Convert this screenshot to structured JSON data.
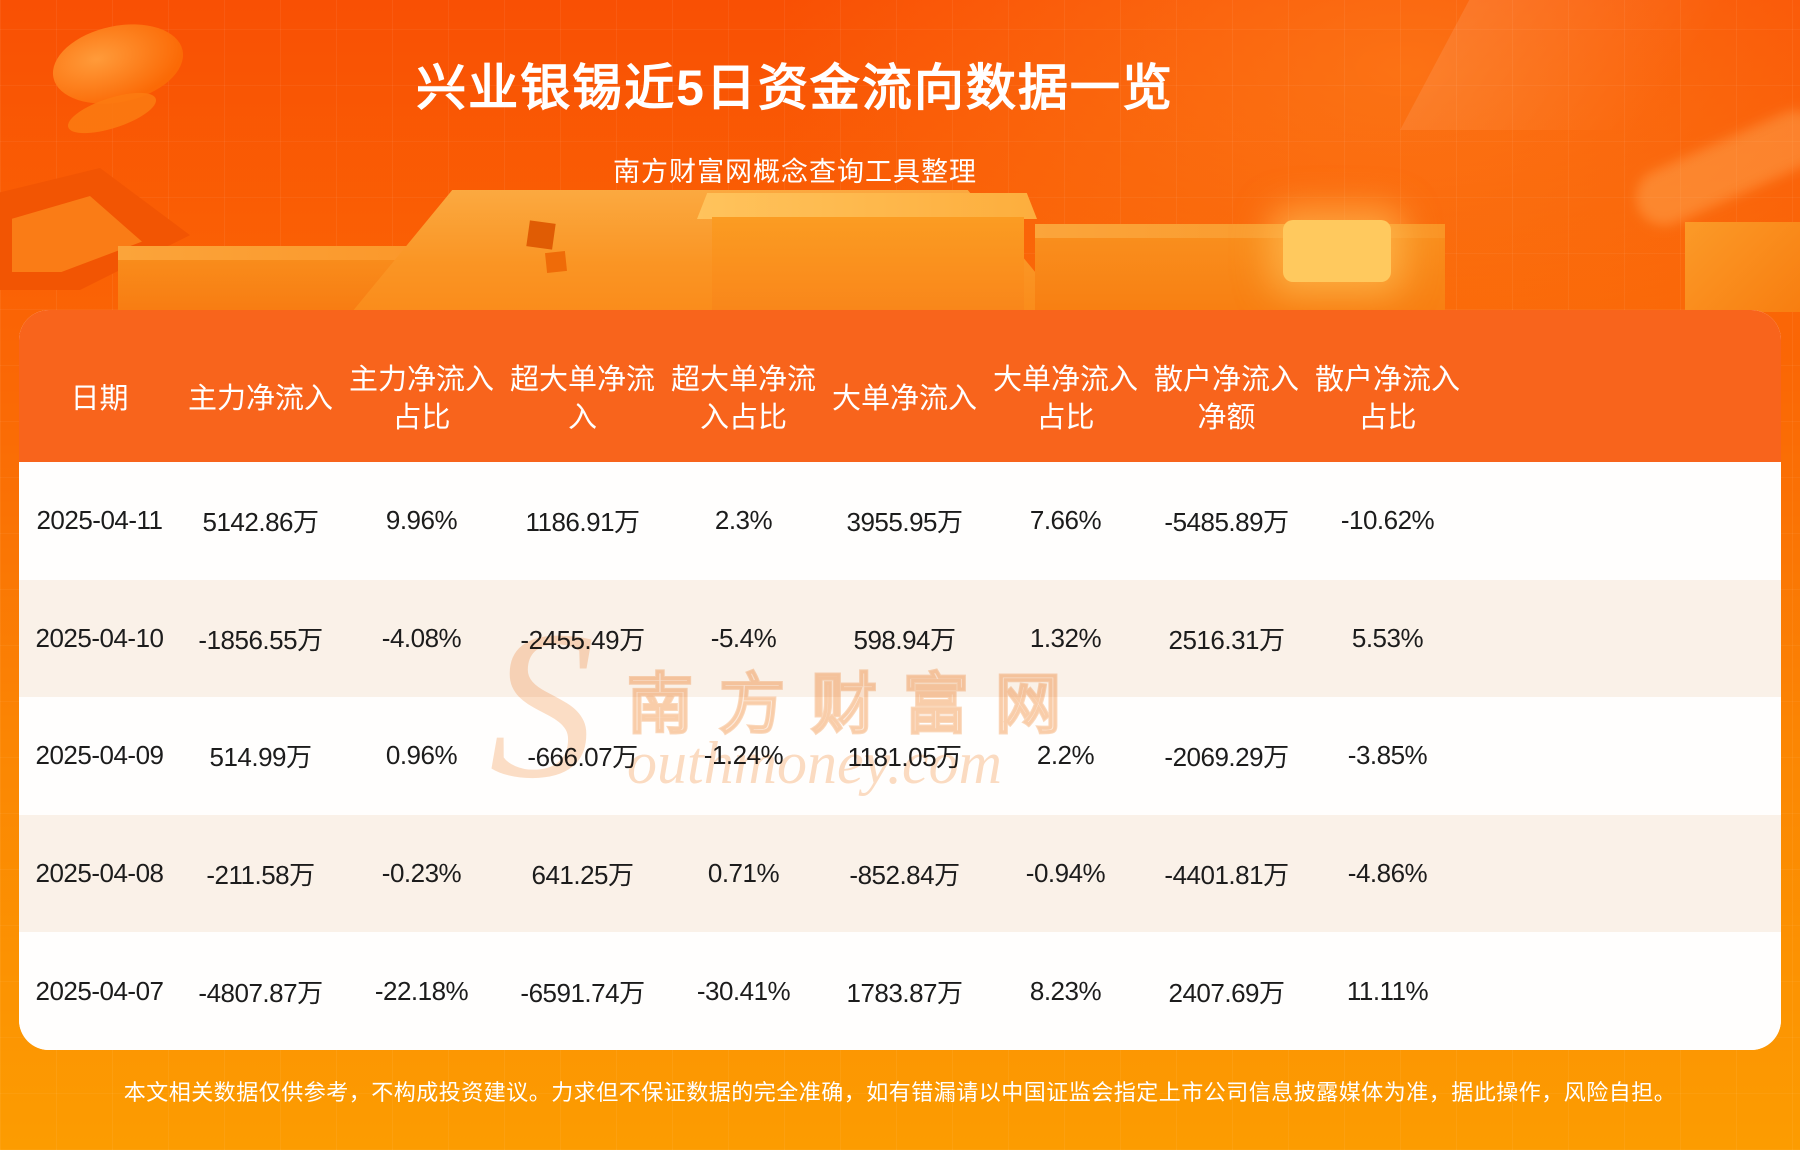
{
  "page": {
    "title": "兴业银锡近5日资金流向数据一览",
    "subtitle": "南方财富网概念查询工具整理",
    "disclaimer": "本文相关数据仅供参考，不构成投资建议。力求但不保证数据的完全准确，如有错漏请以中国证监会指定上市公司信息披露媒体为准，据此操作，风险自担。"
  },
  "watermark": {
    "en_initial": "S",
    "cn": "南方财富网",
    "en_rest": "outhmoney.com"
  },
  "colors": {
    "accent_orange": "#f8641c",
    "row_cream": "#faf1e8",
    "row_white": "#fffefd",
    "background_top": "#f95004",
    "background_bottom": "#fc9c01",
    "text_dark": "#1c1c1c",
    "text_light": "#ffffff"
  },
  "chart_data": {
    "type": "table",
    "title": "兴业银锡近5日资金流向数据一览",
    "columns": [
      "日期",
      "主力净流入",
      "主力净流入\n占比",
      "超大单净流\n入",
      "超大单净流\n入占比",
      "大单净流入",
      "大单净流入\n占比",
      "散户净流入\n净额",
      "散户净流入\n占比"
    ],
    "rows": [
      [
        "2025-04-11",
        "5142.86万",
        "9.96%",
        "1186.91万",
        "2.3%",
        "3955.95万",
        "7.66%",
        "-5485.89万",
        "-10.62%"
      ],
      [
        "2025-04-10",
        "-1856.55万",
        "-4.08%",
        "-2455.49万",
        "-5.4%",
        "598.94万",
        "1.32%",
        "2516.31万",
        "5.53%"
      ],
      [
        "2025-04-09",
        "514.99万",
        "0.96%",
        "-666.07万",
        "-1.24%",
        "1181.05万",
        "2.2%",
        "-2069.29万",
        "-3.85%"
      ],
      [
        "2025-04-08",
        "-211.58万",
        "-0.23%",
        "641.25万",
        "0.71%",
        "-852.84万",
        "-0.94%",
        "-4401.81万",
        "-4.86%"
      ],
      [
        "2025-04-07",
        "-4807.87万",
        "-22.18%",
        "-6591.74万",
        "-30.41%",
        "1783.87万",
        "8.23%",
        "2407.69万",
        "11.11%"
      ]
    ]
  }
}
